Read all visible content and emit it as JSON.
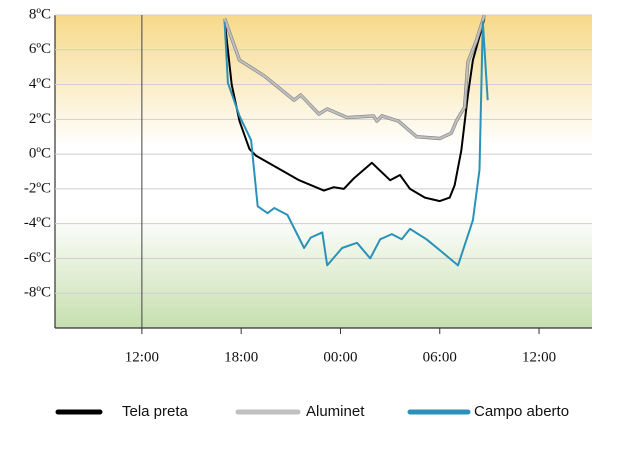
{
  "chart_data": {
    "type": "line",
    "xlim": [
      6.75,
      39.2
    ],
    "xticks": [
      {
        "value": 12,
        "label": "12:00"
      },
      {
        "value": 18,
        "label": "18:00"
      },
      {
        "value": 24,
        "label": "00:00"
      },
      {
        "value": 30,
        "label": "06:00"
      },
      {
        "value": 36,
        "label": "12:00"
      }
    ],
    "ylim": [
      -10,
      8
    ],
    "yticks": [
      {
        "value": 8,
        "label": "8ºC"
      },
      {
        "value": 6,
        "label": "6ºC"
      },
      {
        "value": 4,
        "label": "4ºC"
      },
      {
        "value": 2,
        "label": "2ºC"
      },
      {
        "value": 0,
        "label": "0ºC"
      },
      {
        "value": -2,
        "label": "-2ºC"
      },
      {
        "value": -4,
        "label": "-4ºC"
      },
      {
        "value": -6,
        "label": "-6ºC"
      },
      {
        "value": -8,
        "label": "-8ºC"
      }
    ],
    "grid": true,
    "series": [
      {
        "name": "Tela preta",
        "color": "#000000",
        "x": [
          17.0,
          17.43,
          17.9,
          18.5,
          18.9,
          21.5,
          23.0,
          23.6,
          24.2,
          24.8,
          25.9,
          27.0,
          27.6,
          28.2,
          29.1,
          30.0,
          30.6,
          30.9,
          31.3,
          31.7,
          32.0,
          32.7
        ],
        "values": [
          7.7,
          4.0,
          1.9,
          0.3,
          -0.1,
          -1.5,
          -2.1,
          -1.9,
          -2.0,
          -1.4,
          -0.5,
          -1.5,
          -1.2,
          -2.0,
          -2.5,
          -2.7,
          -2.5,
          -1.8,
          0.2,
          3.4,
          5.4,
          7.8
        ]
      },
      {
        "name": "Aluminet",
        "color": "#c0c0c0",
        "x": [
          17.0,
          17.9,
          19.4,
          21.2,
          21.6,
          22.7,
          23.2,
          24.4,
          26.0,
          26.2,
          26.5,
          27.5,
          28.6,
          30.0,
          30.7,
          31.0,
          31.5,
          31.7,
          32.2,
          32.7
        ],
        "values": [
          7.8,
          5.4,
          4.5,
          3.1,
          3.4,
          2.3,
          2.6,
          2.1,
          2.2,
          1.9,
          2.2,
          1.9,
          1.0,
          0.9,
          1.2,
          1.9,
          2.7,
          5.3,
          6.5,
          8.0
        ]
      },
      {
        "name": "Campo aberto",
        "color": "#2a92b8",
        "x": [
          17.0,
          17.2,
          17.9,
          18.6,
          19.0,
          19.6,
          20.0,
          20.8,
          21.8,
          22.2,
          22.9,
          23.2,
          24.1,
          25.0,
          25.8,
          26.4,
          27.1,
          27.7,
          28.2,
          29.2,
          30.1,
          31.1,
          32.0,
          32.4,
          32.6,
          32.9
        ],
        "values": [
          7.6,
          4.1,
          2.2,
          0.8,
          -3.0,
          -3.4,
          -3.1,
          -3.5,
          -5.4,
          -4.8,
          -4.5,
          -6.4,
          -5.4,
          -5.1,
          -6.0,
          -4.9,
          -4.6,
          -4.9,
          -4.3,
          -4.9,
          -5.6,
          -6.4,
          -3.8,
          -0.9,
          7.6,
          3.1
        ]
      }
    ]
  }
}
